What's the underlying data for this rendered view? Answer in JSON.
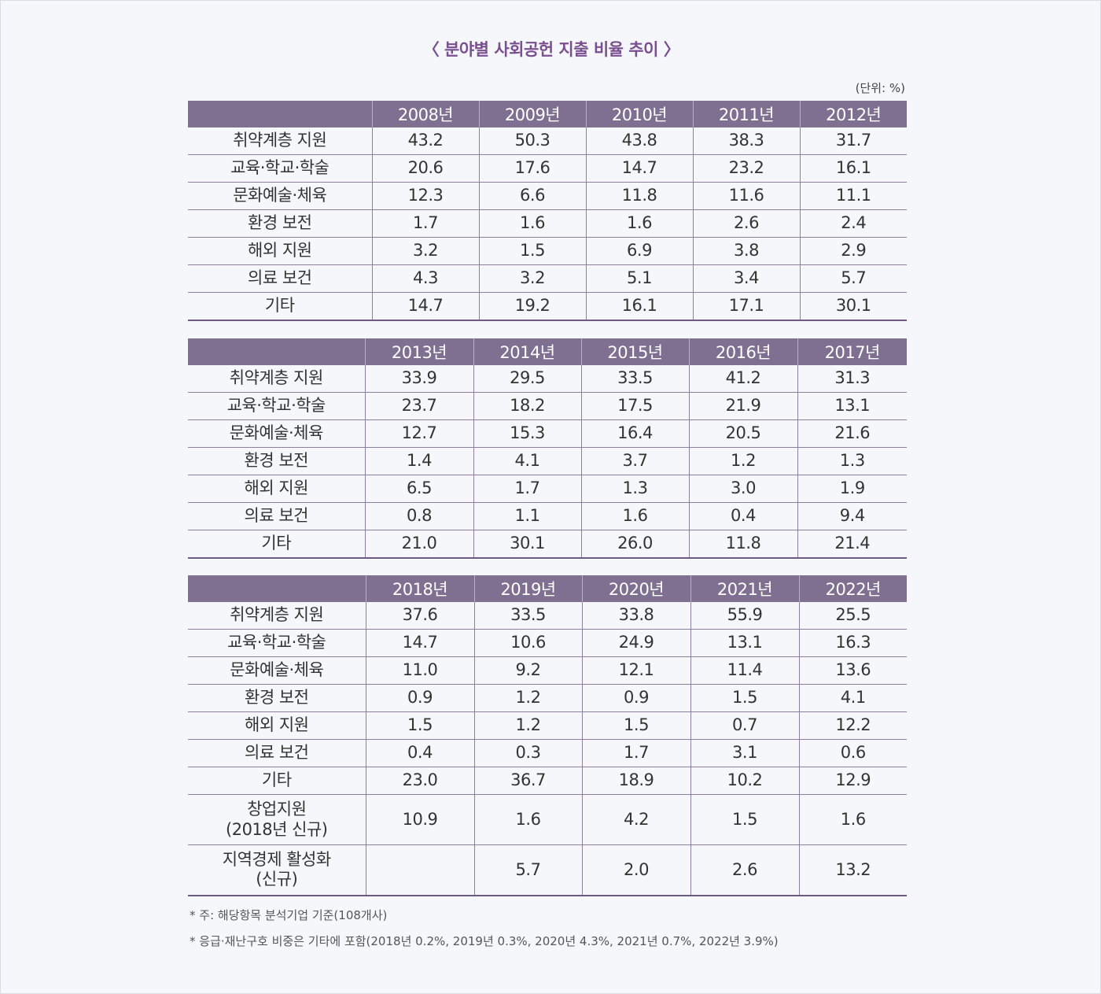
{
  "title": "〈 분야별 사회공헌 지출 비율 추이 〉",
  "unit": "(단위: %)",
  "tables": [
    {
      "years": [
        "2008년",
        "2009년",
        "2010년",
        "2011년",
        "2012년"
      ],
      "rows": [
        {
          "label": "취약계층 지원",
          "values": [
            "43.2",
            "50.3",
            "43.8",
            "38.3",
            "31.7"
          ]
        },
        {
          "label": "교육·학교·학술",
          "values": [
            "20.6",
            "17.6",
            "14.7",
            "23.2",
            "16.1"
          ]
        },
        {
          "label": "문화예술·체육",
          "values": [
            "12.3",
            "6.6",
            "11.8",
            "11.6",
            "11.1"
          ]
        },
        {
          "label": "환경 보전",
          "values": [
            "1.7",
            "1.6",
            "1.6",
            "2.6",
            "2.4"
          ]
        },
        {
          "label": "해외 지원",
          "values": [
            "3.2",
            "1.5",
            "6.9",
            "3.8",
            "2.9"
          ]
        },
        {
          "label": "의료 보건",
          "values": [
            "4.3",
            "3.2",
            "5.1",
            "3.4",
            "5.7"
          ]
        },
        {
          "label": "기타",
          "values": [
            "14.7",
            "19.2",
            "16.1",
            "17.1",
            "30.1"
          ]
        }
      ]
    },
    {
      "years": [
        "2013년",
        "2014년",
        "2015년",
        "2016년",
        "2017년"
      ],
      "rows": [
        {
          "label": "취약계층 지원",
          "values": [
            "33.9",
            "29.5",
            "33.5",
            "41.2",
            "31.3"
          ]
        },
        {
          "label": "교육·학교·학술",
          "values": [
            "23.7",
            "18.2",
            "17.5",
            "21.9",
            "13.1"
          ]
        },
        {
          "label": "문화예술·체육",
          "values": [
            "12.7",
            "15.3",
            "16.4",
            "20.5",
            "21.6"
          ]
        },
        {
          "label": "환경 보전",
          "values": [
            "1.4",
            "4.1",
            "3.7",
            "1.2",
            "1.3"
          ]
        },
        {
          "label": "해외 지원",
          "values": [
            "6.5",
            "1.7",
            "1.3",
            "3.0",
            "1.9"
          ]
        },
        {
          "label": "의료 보건",
          "values": [
            "0.8",
            "1.1",
            "1.6",
            "0.4",
            "9.4"
          ]
        },
        {
          "label": "기타",
          "values": [
            "21.0",
            "30.1",
            "26.0",
            "11.8",
            "21.4"
          ]
        }
      ]
    },
    {
      "years": [
        "2018년",
        "2019년",
        "2020년",
        "2021년",
        "2022년"
      ],
      "rows": [
        {
          "label": "취약계층 지원",
          "values": [
            "37.6",
            "33.5",
            "33.8",
            "55.9",
            "25.5"
          ]
        },
        {
          "label": "교육·학교·학술",
          "values": [
            "14.7",
            "10.6",
            "24.9",
            "13.1",
            "16.3"
          ]
        },
        {
          "label": "문화예술·체육",
          "values": [
            "11.0",
            "9.2",
            "12.1",
            "11.4",
            "13.6"
          ]
        },
        {
          "label": "환경 보전",
          "values": [
            "0.9",
            "1.2",
            "0.9",
            "1.5",
            "4.1"
          ]
        },
        {
          "label": "해외 지원",
          "values": [
            "1.5",
            "1.2",
            "1.5",
            "0.7",
            "12.2"
          ]
        },
        {
          "label": "의료 보건",
          "values": [
            "0.4",
            "0.3",
            "1.7",
            "3.1",
            "0.6"
          ]
        },
        {
          "label": "기타",
          "values": [
            "23.0",
            "36.7",
            "18.9",
            "10.2",
            "12.9"
          ]
        },
        {
          "label": "창업지원",
          "label2": "(2018년 신규)",
          "values": [
            "10.9",
            "1.6",
            "4.2",
            "1.5",
            "1.6"
          ]
        },
        {
          "label": "지역경제 활성화",
          "label2": "(신규)",
          "values": [
            "",
            "5.7",
            "2.0",
            "2.6",
            "13.2"
          ]
        }
      ]
    }
  ],
  "notes": [
    "* 주: 해당항목 분석기업 기준(108개사)",
    "* 응급·재난구호 비중은 기타에 포함(2018년 0.2%, 2019년 0.3%, 2020년 4.3%, 2021년 0.7%, 2022년 3.9%)"
  ]
}
